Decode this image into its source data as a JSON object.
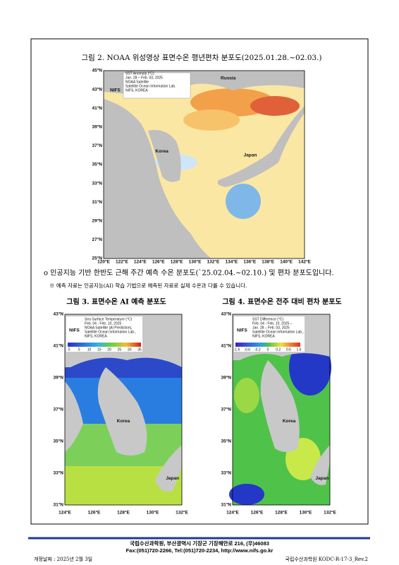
{
  "figure2": {
    "title": "그림 2. NOAA 위성영상 표면수온 평년편차 분포도(2025.01.28.~02.03.)",
    "legend": [
      "SST Anomaly (°C)",
      "Jan. 28 ~ Feb. 03, 2025",
      "NOAA Satellite",
      "Satellite Ocean Information Lab.",
      "NIFS, KOREA"
    ],
    "logo": "NIFS",
    "places": [
      "Russia",
      "Korea",
      "Japan"
    ],
    "lat_labels": [
      "45°N",
      "43°N",
      "41°N",
      "39°N",
      "37°N",
      "35°N",
      "33°N",
      "31°N",
      "29°N",
      "27°N",
      "25°N"
    ],
    "lon_labels": [
      "120°E",
      "122°E",
      "124°E",
      "126°E",
      "128°E",
      "130°E",
      "132°E",
      "134°E",
      "136°E",
      "138°E",
      "140°E",
      "142°E"
    ]
  },
  "paragraph": "o 인공지능 기반 한반도 근해 주간 예측 수온 분포도(`25.02.04.~02.10.) 및 편차 분포도입니다.",
  "note": "※ 예측 자료는 인공지능(AI) 학습 기법으로 예측된 자료로 실제 수온과 다를 수 있습니다.",
  "figure3": {
    "title": "그림 3. 표면수온 AI 예측 분포도",
    "legend": [
      "Sea Surface Temperature (°C)",
      "Feb. 04 - Feb. 10, 2025",
      "NOAA Satellite (AI Prediction),",
      "Satellite Ocean Information Lab.,",
      "NIFS, KOREA"
    ],
    "logo": "NIFS",
    "scale": [
      "0",
      "5",
      "10",
      "15",
      "20",
      "25",
      "30",
      "35"
    ],
    "places": [
      "Korea",
      "Japan"
    ],
    "lat_labels": [
      "43°N",
      "41°N",
      "39°N",
      "37°N",
      "35°N",
      "33°N",
      "31°N"
    ],
    "lon_labels": [
      "124°E",
      "126°E",
      "128°E",
      "130°E",
      "132°E"
    ]
  },
  "figure4": {
    "title": "그림 4. 표면수온 전주 대비 편차 분포도",
    "legend": [
      "SST Difference (°C)",
      "Feb. 04 - Feb. 10, 2025 –",
      "Jan. 28 – Feb. 03, 2025",
      "Satellite Ocean Information Lab.,",
      "NIFS, KOREA"
    ],
    "logo": "NIFS",
    "scale": [
      "-1.6",
      "-0.6",
      "-0.2",
      "0",
      "0.2",
      "0.6",
      "1.6"
    ],
    "places": [
      "Korea",
      "Japan"
    ],
    "lat_labels": [
      "43°N",
      "41°N",
      "39°N",
      "37°N",
      "35°N",
      "33°N",
      "31°N"
    ],
    "lon_labels": [
      "124°E",
      "126°E",
      "128°E",
      "130°E",
      "132°E"
    ]
  },
  "footer": {
    "line1": "국립수산과학원, 부산광역시 기장군 기장해안로 216, (우)46083",
    "line2": "Fax:(051)720-2266, Tel:(051)720-2234, http://www.nifs.go.kr",
    "revision_date": "개정날짜 : 2025년 2월 3일",
    "doc_id": "국립수산과학원 KODC-R-17-3_Rev.2"
  }
}
